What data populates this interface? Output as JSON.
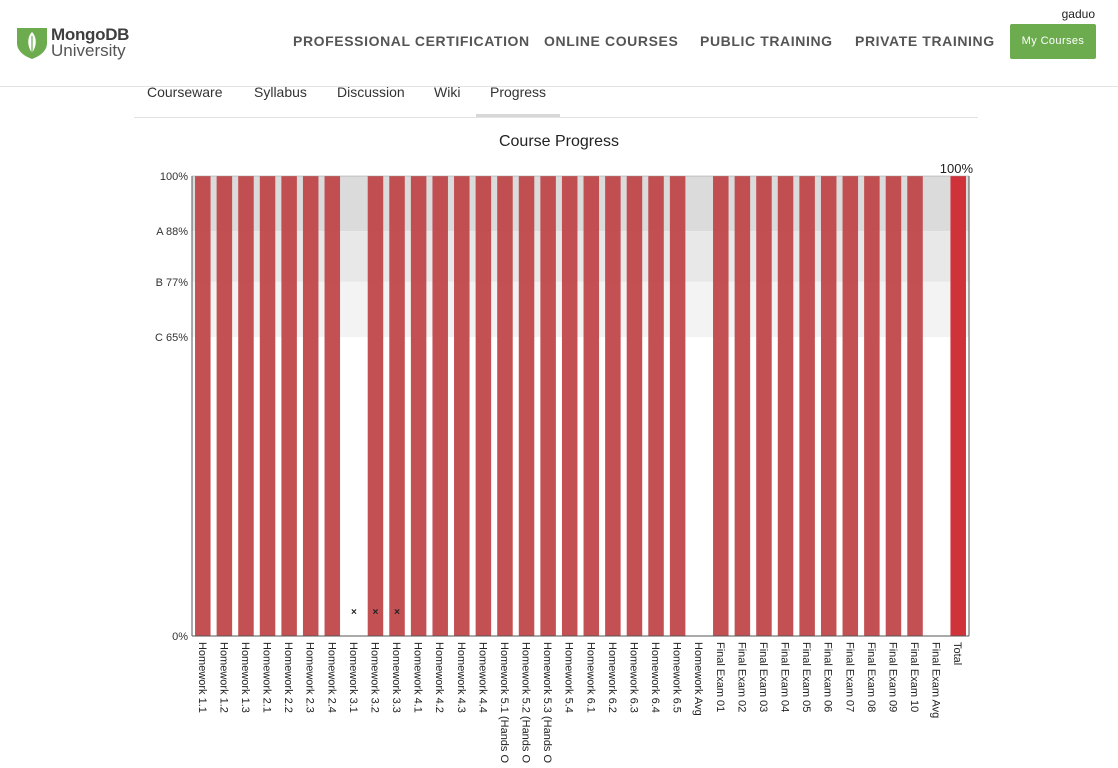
{
  "header": {
    "logo_line1": "MongoDB",
    "logo_line2": "University",
    "nav": [
      "PROFESSIONAL CERTIFICATION",
      "ONLINE COURSES",
      "PUBLIC TRAINING",
      "PRIVATE TRAINING"
    ],
    "my_courses": "My Courses",
    "username": "gaduo",
    "accent_color": "#6cac4f"
  },
  "tabs": {
    "items": [
      "Courseware",
      "Syllabus",
      "Discussion",
      "Wiki",
      "Progress"
    ],
    "active": "Progress"
  },
  "chart_data": {
    "type": "bar",
    "title": "Course Progress",
    "xlabel": "",
    "ylabel": "",
    "ylim": [
      0,
      100
    ],
    "yticks": [
      {
        "value": 100,
        "label": "100%"
      },
      {
        "value": 88,
        "label": "A 88%"
      },
      {
        "value": 77,
        "label": "B 77%"
      },
      {
        "value": 65,
        "label": "C 65%"
      },
      {
        "value": 0,
        "label": "0%"
      }
    ],
    "grade_bands": [
      {
        "from": 88,
        "to": 100,
        "color": "#dbdbdb"
      },
      {
        "from": 77,
        "to": 88,
        "color": "#e8e8e8"
      },
      {
        "from": 65,
        "to": 77,
        "color": "#f3f3f3"
      }
    ],
    "categories": [
      "Homework 1.1",
      "Homework 1.2",
      "Homework 1.3",
      "Homework 2.1",
      "Homework 2.2",
      "Homework 2.3",
      "Homework 2.4",
      "Homework 3.1",
      "Homework 3.2",
      "Homework 3.3",
      "Homework 4.1",
      "Homework 4.2",
      "Homework 4.3",
      "Homework 4.4",
      "Homework 5.1 (Hands O",
      "Homework 5.2 (Hands O",
      "Homework 5.3 (Hands O",
      "Homework 5.4",
      "Homework 6.1",
      "Homework 6.2",
      "Homework 6.3",
      "Homework 6.4",
      "Homework 6.5",
      "Homework Avg",
      "Final Exam 01",
      "Final Exam 02",
      "Final Exam 03",
      "Final Exam 04",
      "Final Exam 05",
      "Final Exam 06",
      "Final Exam 07",
      "Final Exam 08",
      "Final Exam 09",
      "Final Exam 10",
      "Final Exam Avg",
      "Total"
    ],
    "values": [
      100,
      100,
      100,
      100,
      100,
      100,
      100,
      0,
      100,
      100,
      100,
      100,
      100,
      100,
      100,
      100,
      100,
      100,
      100,
      100,
      100,
      100,
      100,
      0,
      100,
      100,
      100,
      100,
      100,
      100,
      100,
      100,
      100,
      100,
      0,
      100
    ],
    "dropped_markers": [
      "Homework 3.1",
      "Homework 3.2",
      "Homework 3.3"
    ],
    "total_label": "100%",
    "bar_color": "#c0474a",
    "total_bar_color": "#d0323a"
  }
}
